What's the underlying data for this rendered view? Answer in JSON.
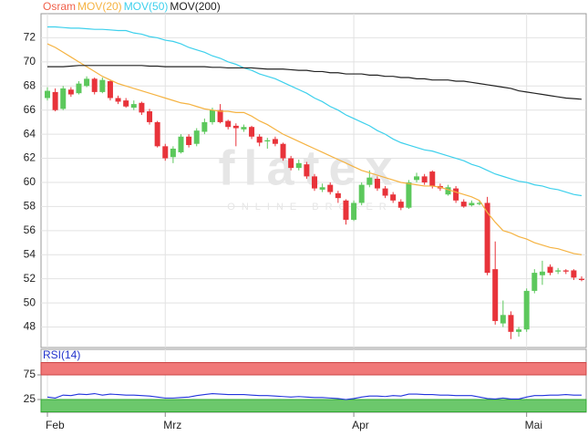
{
  "chart_data": [
    {
      "type": "candlestick",
      "watermark": "flatex",
      "watermark_sub": "ONLINE BROKER",
      "categories": [
        "Feb",
        null,
        null,
        null,
        null,
        null,
        null,
        null,
        null,
        null,
        null,
        null,
        null,
        null,
        null,
        "Mrz",
        null,
        null,
        null,
        null,
        null,
        null,
        null,
        null,
        null,
        null,
        null,
        null,
        null,
        null,
        null,
        null,
        null,
        null,
        null,
        null,
        null,
        null,
        null,
        "Apr",
        null,
        null,
        null,
        null,
        null,
        null,
        null,
        null,
        null,
        null,
        null,
        null,
        null,
        null,
        null,
        null,
        null,
        null,
        null,
        null,
        null,
        "Mai",
        null,
        null,
        null,
        null,
        null,
        null,
        null
      ],
      "ylim": [
        46.3,
        74
      ],
      "yticks": [
        48,
        50,
        52,
        54,
        56,
        58,
        60,
        62,
        64,
        66,
        68,
        70,
        72
      ],
      "grid": true,
      "series": [
        {
          "name": "Osram",
          "color": "#f0604a",
          "up_color": "#5cc85c",
          "down_color": "#e8333a",
          "open": [
            67.0,
            67.5,
            66.1,
            67.7,
            67.4,
            68.0,
            68.6,
            67.5,
            68.4,
            67.0,
            66.8,
            66.2,
            66.6,
            65.9,
            65.0,
            63.0,
            62.1,
            62.5,
            63.8,
            63.2,
            64.2,
            65.0,
            66.0,
            65.1,
            64.7,
            64.4,
            64.6,
            63.8,
            63.4,
            63.6,
            63.2,
            62.0,
            61.2,
            61.5,
            60.5,
            59.4,
            59.8,
            59.1,
            58.5,
            56.9,
            58.3,
            59.8,
            60.3,
            59.5,
            59.0,
            58.4,
            57.9,
            60.2,
            60.5,
            60.9,
            59.7,
            59.0,
            59.5,
            58.4,
            58.1,
            58.2,
            58.3,
            52.8,
            48.3,
            49.0,
            47.6,
            47.8,
            51.0,
            52.3,
            53.0,
            52.6,
            52.7,
            52.7,
            52.0
          ],
          "high": [
            67.9,
            67.8,
            68.0,
            67.9,
            68.4,
            68.8,
            68.7,
            68.7,
            68.5,
            67.2,
            67.0,
            66.8,
            66.7,
            66.1,
            65.1,
            63.2,
            63.0,
            64.0,
            64.0,
            64.5,
            65.3,
            66.2,
            66.5,
            65.2,
            64.9,
            64.8,
            64.7,
            64.0,
            63.7,
            63.8,
            63.3,
            62.2,
            61.9,
            61.7,
            60.7,
            59.9,
            60.0,
            59.3,
            58.6,
            58.5,
            60.0,
            61.0,
            60.5,
            59.7,
            59.2,
            58.6,
            60.2,
            60.8,
            60.7,
            61.0,
            59.9,
            59.8,
            59.7,
            58.6,
            58.5,
            58.5,
            58.8,
            55.1,
            50.2,
            49.3,
            48.0,
            51.2,
            52.8,
            53.5,
            53.2,
            52.9,
            52.8,
            52.8,
            52.2
          ],
          "low": [
            66.8,
            65.9,
            66.0,
            67.1,
            67.3,
            67.9,
            67.3,
            67.4,
            66.8,
            66.5,
            66.2,
            66.0,
            65.6,
            64.8,
            62.9,
            61.8,
            61.6,
            62.4,
            62.9,
            63.0,
            64.0,
            64.8,
            64.9,
            64.4,
            63.0,
            64.2,
            63.6,
            63.0,
            62.8,
            63.0,
            61.8,
            61.0,
            61.0,
            60.3,
            59.3,
            59.2,
            59.0,
            58.3,
            56.5,
            56.8,
            58.1,
            59.6,
            59.3,
            58.7,
            58.3,
            57.7,
            57.8,
            60.0,
            59.8,
            59.5,
            59.3,
            58.9,
            58.3,
            57.9,
            58.0,
            58.1,
            52.3,
            48.2,
            48.0,
            47.0,
            47.2,
            47.6,
            50.8,
            51.5,
            52.3,
            52.4,
            52.4,
            51.9,
            51.8
          ],
          "close": [
            67.6,
            66.0,
            67.8,
            67.3,
            68.2,
            68.6,
            67.5,
            68.5,
            67.0,
            66.7,
            66.3,
            66.5,
            65.8,
            65.0,
            63.0,
            62.0,
            62.8,
            63.8,
            63.1,
            64.3,
            65.0,
            66.0,
            65.0,
            64.6,
            64.5,
            64.6,
            63.8,
            63.3,
            63.5,
            63.2,
            62.0,
            61.2,
            61.6,
            60.5,
            59.5,
            59.6,
            59.2,
            58.7,
            56.9,
            58.3,
            59.8,
            60.4,
            59.5,
            58.9,
            58.5,
            57.9,
            60.0,
            60.5,
            60.0,
            59.7,
            59.5,
            59.6,
            58.5,
            58.0,
            58.3,
            58.3,
            52.5,
            48.5,
            49.0,
            47.6,
            47.8,
            51.0,
            52.5,
            52.6,
            52.5,
            52.7,
            52.6,
            52.1,
            51.9
          ]
        },
        {
          "name": "MOV(20)",
          "color": "#f5b342",
          "values": [
            71.5,
            71.2,
            70.8,
            70.4,
            70.0,
            69.6,
            69.2,
            68.8,
            68.5,
            68.2,
            68.0,
            67.8,
            67.6,
            67.4,
            67.2,
            67.0,
            66.8,
            66.6,
            66.5,
            66.3,
            66.1,
            66.0,
            65.9,
            65.9,
            65.8,
            65.8,
            65.5,
            65.1,
            64.8,
            64.4,
            64.0,
            63.7,
            63.4,
            63.1,
            62.8,
            62.5,
            62.2,
            61.9,
            61.6,
            61.3,
            61.0,
            60.8,
            60.6,
            60.4,
            60.2,
            60.0,
            59.9,
            59.8,
            59.7,
            59.7,
            59.6,
            59.4,
            59.2,
            59.0,
            58.8,
            58.5,
            57.5,
            56.7,
            56.0,
            55.8,
            55.5,
            55.3,
            55.0,
            54.8,
            54.6,
            54.5,
            54.3,
            54.1,
            54.0
          ]
        },
        {
          "name": "MOV(50)",
          "color": "#3dd0ec",
          "values": [
            72.9,
            72.9,
            72.85,
            72.8,
            72.8,
            72.75,
            72.7,
            72.7,
            72.65,
            72.6,
            72.6,
            72.4,
            72.3,
            72.1,
            72.0,
            71.8,
            71.7,
            71.5,
            71.2,
            71.0,
            70.8,
            70.5,
            70.3,
            70.0,
            69.8,
            69.5,
            69.3,
            69.0,
            68.8,
            68.6,
            68.3,
            68.0,
            67.7,
            67.4,
            67.0,
            66.7,
            66.3,
            66.0,
            65.6,
            65.3,
            65.0,
            64.7,
            64.3,
            64.0,
            63.6,
            63.3,
            63.1,
            62.9,
            62.7,
            62.6,
            62.4,
            62.2,
            62.0,
            61.8,
            61.5,
            61.3,
            61.0,
            60.7,
            60.5,
            60.3,
            60.1,
            60.0,
            59.8,
            59.7,
            59.5,
            59.4,
            59.2,
            59.0,
            58.9
          ]
        },
        {
          "name": "MOV(200)",
          "color": "#222222",
          "values": [
            69.6,
            69.6,
            69.6,
            69.65,
            69.7,
            69.7,
            69.7,
            69.7,
            69.7,
            69.7,
            69.7,
            69.7,
            69.7,
            69.65,
            69.65,
            69.6,
            69.6,
            69.6,
            69.6,
            69.6,
            69.6,
            69.55,
            69.55,
            69.5,
            69.5,
            69.5,
            69.5,
            69.45,
            69.4,
            69.4,
            69.4,
            69.35,
            69.3,
            69.3,
            69.2,
            69.2,
            69.1,
            69.1,
            69.0,
            69.0,
            69.0,
            68.9,
            68.9,
            68.8,
            68.8,
            68.7,
            68.7,
            68.6,
            68.6,
            68.5,
            68.5,
            68.5,
            68.4,
            68.4,
            68.3,
            68.2,
            68.1,
            68.0,
            67.9,
            67.8,
            67.6,
            67.5,
            67.4,
            67.3,
            67.2,
            67.1,
            67.0,
            66.95,
            66.9
          ]
        }
      ]
    },
    {
      "type": "line",
      "title": "RSI(14)",
      "title_color": "#2233cc",
      "ylim": [
        0,
        100
      ],
      "yticks": [
        25,
        75
      ],
      "upper_band_color": "#f07878",
      "lower_band_color": "#6cc86c",
      "series": [
        {
          "name": "RSI(14)",
          "color": "#2233dd",
          "values": [
            30,
            28,
            34,
            33,
            36,
            35,
            37,
            34,
            36,
            35,
            34,
            34,
            33,
            32,
            30,
            28,
            28,
            29,
            30,
            33,
            35,
            37,
            36,
            35,
            35,
            35,
            34,
            33,
            33,
            32,
            31,
            30,
            31,
            30,
            29,
            29,
            28,
            27,
            25,
            27,
            30,
            32,
            32,
            31,
            33,
            32,
            36,
            36,
            35,
            35,
            34,
            34,
            33,
            33,
            33,
            30,
            27,
            26,
            28,
            26,
            26,
            30,
            33,
            33,
            34,
            34,
            35,
            34,
            34
          ]
        }
      ]
    }
  ]
}
